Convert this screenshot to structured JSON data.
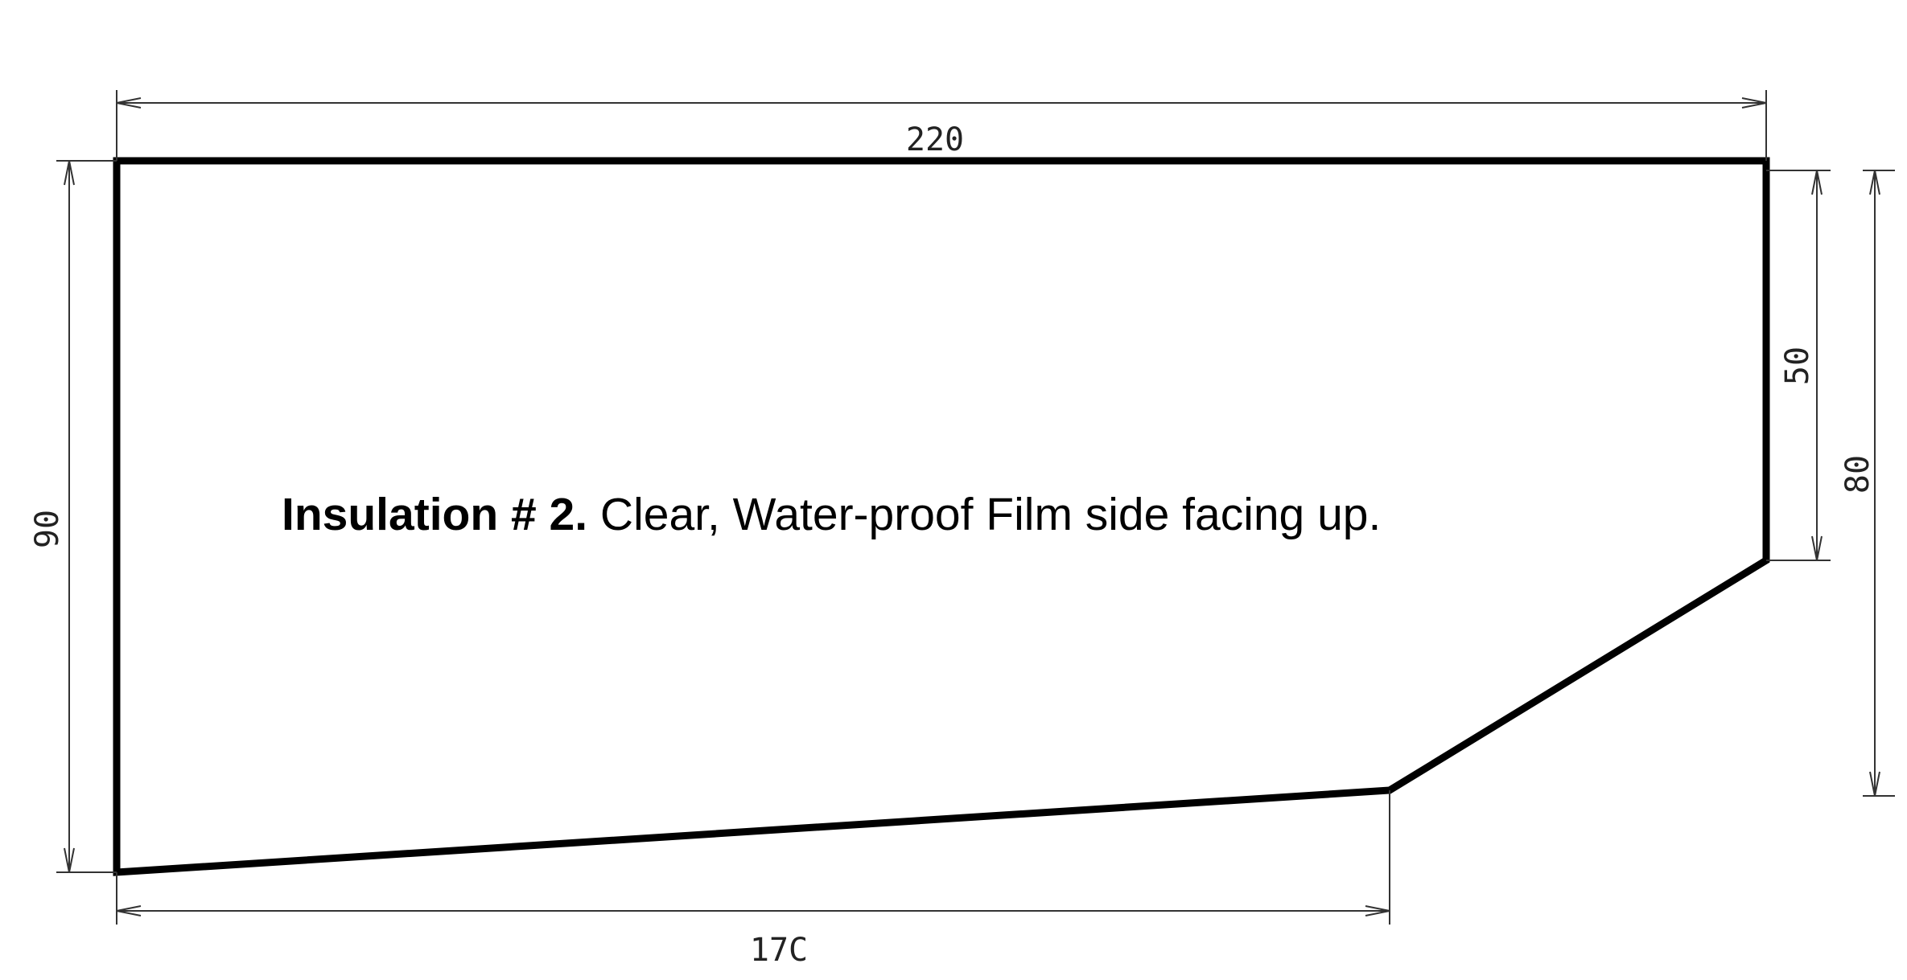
{
  "dimensions": {
    "top_width": "220",
    "bottom_width": "17C",
    "left_height": "90",
    "right_height_inner": "50",
    "right_height_outer": "80"
  },
  "caption": {
    "title": "Insulation # 2.",
    "text": " Clear, Water-proof Film side facing up."
  }
}
